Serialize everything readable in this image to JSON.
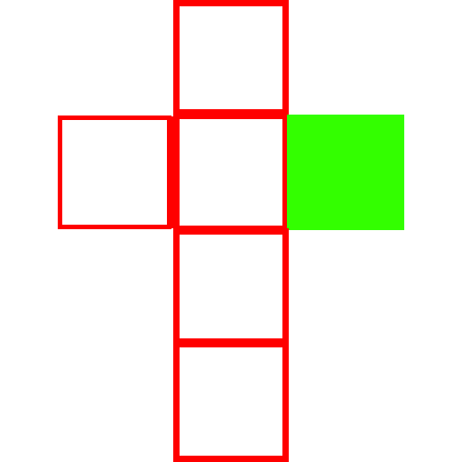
{
  "net": {
    "colors": {
      "outline": "#ff0000",
      "highlight": "#33ff00",
      "empty_fill": "#ffffff",
      "background": "#ffffff"
    },
    "squares": [
      {
        "id": "top",
        "style": "outline"
      },
      {
        "id": "left",
        "style": "outline"
      },
      {
        "id": "center",
        "style": "outline"
      },
      {
        "id": "right",
        "style": "filled"
      },
      {
        "id": "lower-middle",
        "style": "outline"
      },
      {
        "id": "bottom",
        "style": "outline"
      }
    ]
  }
}
